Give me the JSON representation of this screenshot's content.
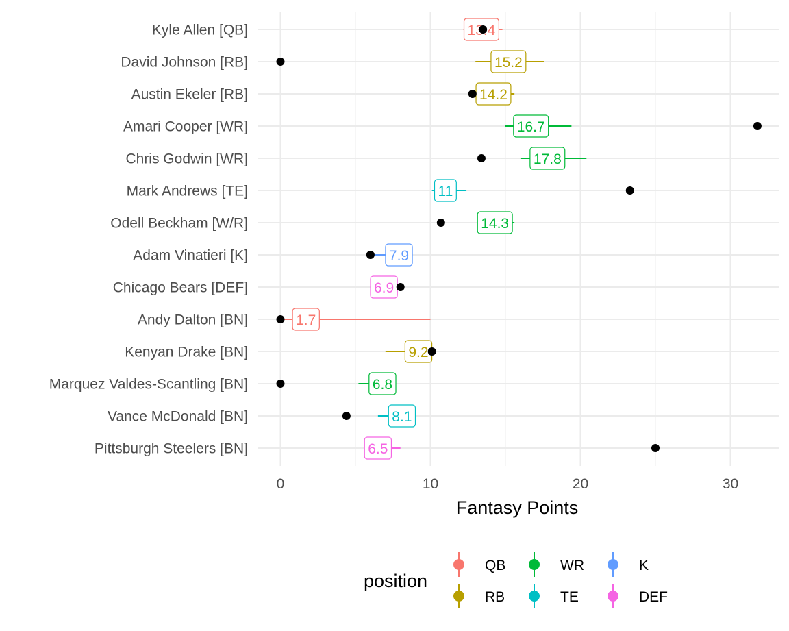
{
  "chart_data": {
    "type": "scatter",
    "xlabel": "Fantasy Points",
    "ylabel": "",
    "xlim": [
      -1,
      33.2
    ],
    "x_ticks": [
      0,
      10,
      20,
      30
    ],
    "grid": true,
    "legend": {
      "title": "position",
      "placement": "bottom",
      "entries": [
        {
          "name": "QB",
          "color": "#F8766D"
        },
        {
          "name": "RB",
          "color": "#B79F00"
        },
        {
          "name": "WR",
          "color": "#00BA38"
        },
        {
          "name": "TE",
          "color": "#00BFC4"
        },
        {
          "name": "K",
          "color": "#619CFF"
        },
        {
          "name": "DEF",
          "color": "#F564E3"
        }
      ]
    },
    "players": [
      {
        "name": "Kyle Allen [QB]",
        "position": "QB",
        "projection": 13.4,
        "proj_label": "13.4",
        "range": [
          12.2,
          14.8
        ],
        "actual": 13.5
      },
      {
        "name": "David Johnson [RB]",
        "position": "RB",
        "projection": 15.2,
        "proj_label": "15.2",
        "range": [
          13.0,
          17.6
        ],
        "actual": 0.0
      },
      {
        "name": "Austin Ekeler [RB]",
        "position": "RB",
        "projection": 14.2,
        "proj_label": "14.2",
        "range": [
          12.9,
          15.6
        ],
        "actual": 12.8
      },
      {
        "name": "Amari Cooper [WR]",
        "position": "WR",
        "projection": 16.7,
        "proj_label": "16.7",
        "range": [
          15.0,
          19.4
        ],
        "actual": 31.8
      },
      {
        "name": "Chris Godwin [WR]",
        "position": "WR",
        "projection": 17.8,
        "proj_label": "17.8",
        "range": [
          16.0,
          20.4
        ],
        "actual": 13.4
      },
      {
        "name": "Mark Andrews [TE]",
        "position": "TE",
        "projection": 11.0,
        "proj_label": "11",
        "range": [
          10.1,
          12.4
        ],
        "actual": 23.3
      },
      {
        "name": "Odell Beckham [W/R]",
        "position": "WR",
        "projection": 14.3,
        "proj_label": "14.3",
        "range": [
          13.1,
          15.6
        ],
        "actual": 10.7
      },
      {
        "name": "Adam Vinatieri [K]",
        "position": "K",
        "projection": 7.9,
        "proj_label": "7.9",
        "range": [
          6.0,
          8.8
        ],
        "actual": 6.0
      },
      {
        "name": "Chicago Bears [DEF]",
        "position": "DEF",
        "projection": 6.9,
        "proj_label": "6.9",
        "range": [
          6.0,
          7.8
        ],
        "actual": 8.0
      },
      {
        "name": "Andy Dalton [BN]",
        "position": "QB",
        "projection": 1.7,
        "proj_label": "1.7",
        "range": [
          0.0,
          10.0
        ],
        "actual": 0.0
      },
      {
        "name": "Kenyan Drake [BN]",
        "position": "RB",
        "projection": 9.2,
        "proj_label": "9.2",
        "range": [
          7.0,
          10.0
        ],
        "actual": 10.1
      },
      {
        "name": "Marquez Valdes-Scantling [BN]",
        "position": "WR",
        "projection": 6.8,
        "proj_label": "6.8",
        "range": [
          5.2,
          7.4
        ],
        "actual": 0.0
      },
      {
        "name": "Vance McDonald [BN]",
        "position": "TE",
        "projection": 8.1,
        "proj_label": "8.1",
        "range": [
          6.5,
          8.8
        ],
        "actual": 4.4
      },
      {
        "name": "Pittsburgh Steelers [BN]",
        "position": "DEF",
        "projection": 6.5,
        "proj_label": "6.5",
        "range": [
          5.8,
          8.0
        ],
        "actual": 25.0
      }
    ]
  }
}
